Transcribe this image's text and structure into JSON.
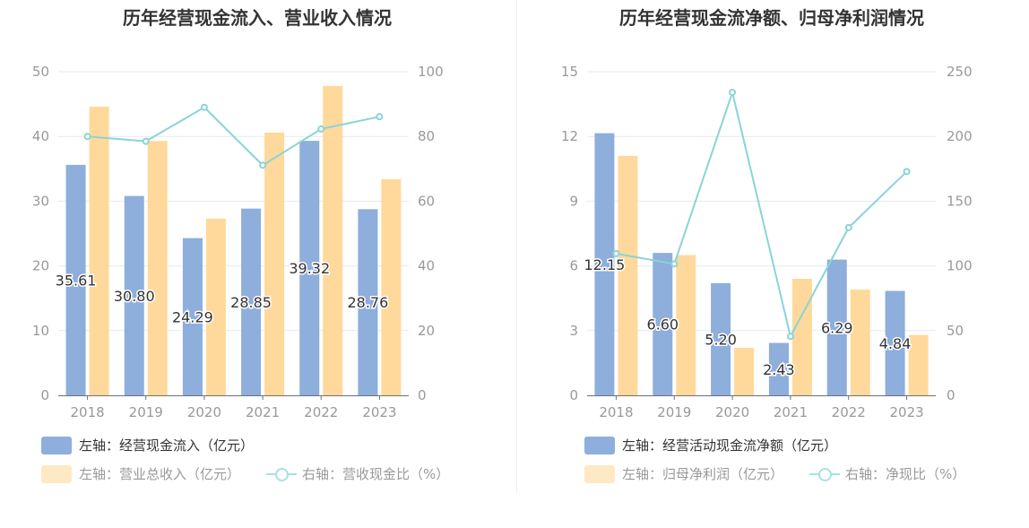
{
  "colors": {
    "bar1": "#8eaedb",
    "bar2": "#ffd99b",
    "line": "#89d4d9",
    "legend_bar2": "#ffe9c4",
    "axis_text": "#999999",
    "grid": "#e6e9f0"
  },
  "chart_data": [
    {
      "type": "bar",
      "title": "历年经营现金流入、营业收入情况",
      "categories": [
        "2018",
        "2019",
        "2020",
        "2021",
        "2022",
        "2023"
      ],
      "left_ticks": [
        "0",
        "10",
        "20",
        "30",
        "40",
        "50"
      ],
      "right_ticks": [
        "0",
        "20",
        "40",
        "60",
        "80",
        "100"
      ],
      "ylim_left": [
        0,
        50
      ],
      "ylim_right": [
        0,
        100
      ],
      "series": [
        {
          "name": "左轴：经营现金流入（亿元）",
          "axis": "left",
          "kind": "bar",
          "values": [
            35.61,
            30.8,
            24.29,
            28.85,
            39.32,
            28.76
          ],
          "labels": [
            "35.61",
            "30.80",
            "24.29",
            "28.85",
            "39.32",
            "28.76"
          ]
        },
        {
          "name": "左轴：营业总收入（亿元）",
          "axis": "left",
          "kind": "bar",
          "values": [
            44.6,
            39.3,
            27.3,
            40.6,
            47.8,
            33.4
          ]
        },
        {
          "name": "右轴：营收现金比（%）",
          "axis": "right",
          "kind": "line",
          "values": [
            80,
            78.5,
            89,
            71.1,
            82.3,
            86.1
          ]
        }
      ]
    },
    {
      "type": "bar",
      "title": "历年经营现金流净额、归母净利润情况",
      "categories": [
        "2018",
        "2019",
        "2020",
        "2021",
        "2022",
        "2023"
      ],
      "left_ticks": [
        "0",
        "3",
        "6",
        "9",
        "12",
        "15"
      ],
      "right_ticks": [
        "0",
        "50",
        "100",
        "150",
        "200",
        "250"
      ],
      "ylim_left": [
        0,
        15
      ],
      "ylim_right": [
        0,
        250
      ],
      "series": [
        {
          "name": "左轴：经营活动现金流净额（亿元）",
          "axis": "left",
          "kind": "bar",
          "values": [
            12.15,
            6.6,
            5.2,
            2.43,
            6.29,
            4.84
          ],
          "labels": [
            "12.15",
            "6.60",
            "5.20",
            "2.43",
            "6.29",
            "4.84"
          ]
        },
        {
          "name": "左轴：归母净利润（亿元）",
          "axis": "left",
          "kind": "bar",
          "values": [
            11.1,
            6.5,
            2.2,
            5.4,
            4.9,
            2.8
          ]
        },
        {
          "name": "右轴：净现比（%）",
          "axis": "right",
          "kind": "line",
          "values": [
            109.5,
            101.5,
            234,
            45.5,
            129.6,
            172.9
          ]
        }
      ]
    }
  ]
}
